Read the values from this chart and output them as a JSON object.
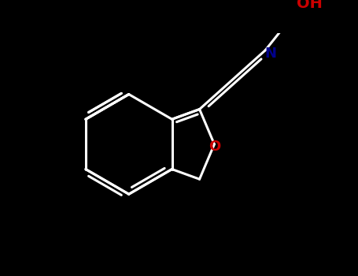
{
  "background_color": "#000000",
  "bond_color": "#ffffff",
  "N_color": "#00008b",
  "O_color": "#cc0000",
  "bond_width": 2.2,
  "figsize": [
    4.55,
    3.5
  ],
  "dpi": 100,
  "label_OH": "OH",
  "label_N": "N",
  "label_O": "O",
  "font_size": 13
}
